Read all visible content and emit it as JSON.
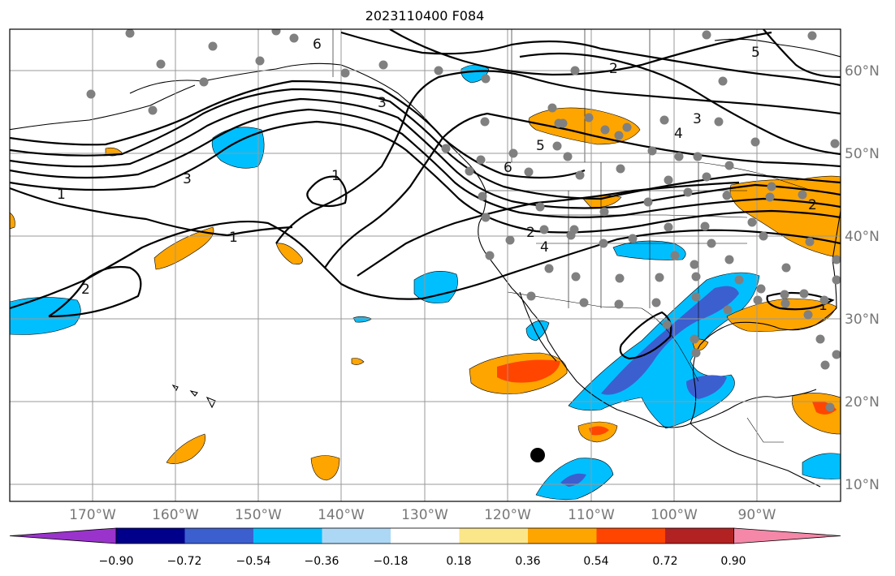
{
  "title": "2023110400 F084",
  "map": {
    "lon_labels": [
      "170°W",
      "160°W",
      "150°W",
      "140°W",
      "130°W",
      "120°W",
      "110°W",
      "100°W",
      "90°W"
    ],
    "lat_labels": [
      "60°N",
      "50°N",
      "40°N",
      "30°N",
      "20°N",
      "10°N"
    ],
    "grid": true,
    "contour_labels": [
      "6",
      "2",
      "5",
      "3",
      "4",
      "3",
      "5",
      "6",
      "3",
      "1",
      "1",
      "1",
      "2",
      "4",
      "2",
      "2",
      "1"
    ],
    "station_marker": "black-dot"
  },
  "colorbar": {
    "ticks": [
      "−0.90",
      "−0.72",
      "−0.54",
      "−0.36",
      "−0.18",
      "0.18",
      "0.36",
      "0.54",
      "0.72",
      "0.90"
    ],
    "colors": [
      "#9a33cc",
      "#00008b",
      "#3c5fcf",
      "#00bfff",
      "#add8f5",
      "#ffffff",
      "#fbe68a",
      "#ffa500",
      "#ff4500",
      "#b22222",
      "#f587a8"
    ],
    "extend": "both"
  }
}
